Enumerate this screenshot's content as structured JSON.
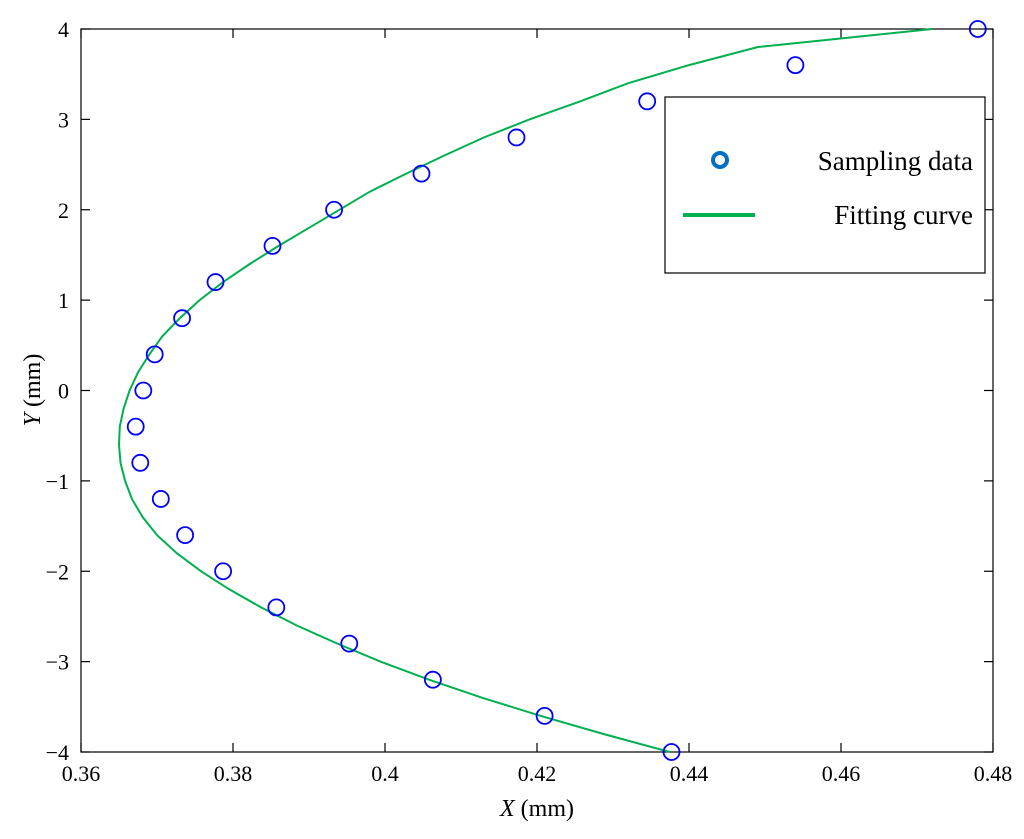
{
  "chart_data": {
    "type": "scatter",
    "xlabel_var": "X",
    "xlabel_unit": " (mm)",
    "ylabel_var": "Y",
    "ylabel_unit": " (mm)",
    "xlim": [
      0.36,
      0.48
    ],
    "ylim": [
      -4,
      4
    ],
    "x_ticks": [
      0.36,
      0.38,
      0.4,
      0.42,
      0.44,
      0.46,
      0.48
    ],
    "x_tick_labels": [
      "0.36",
      "0.38",
      "0.4",
      "0.42",
      "0.44",
      "0.46",
      "0.48"
    ],
    "y_ticks": [
      -4,
      -3,
      -2,
      -1,
      0,
      1,
      2,
      3,
      4
    ],
    "y_tick_labels": [
      "−4",
      "−3",
      "−2",
      "−1",
      "0",
      "1",
      "2",
      "3",
      "4"
    ],
    "grid": false,
    "legend": "top-right",
    "series": [
      {
        "name": "Sampling data",
        "kind": "scatter",
        "marker": "circle",
        "color": "#0000ff",
        "points": [
          [
            0.4377,
            -4.0
          ],
          [
            0.421,
            -3.6
          ],
          [
            0.4063,
            -3.2
          ],
          [
            0.3953,
            -2.8
          ],
          [
            0.3857,
            -2.4
          ],
          [
            0.3787,
            -2.0
          ],
          [
            0.3737,
            -1.6
          ],
          [
            0.3705,
            -1.2
          ],
          [
            0.3678,
            -0.8
          ],
          [
            0.3672,
            -0.4
          ],
          [
            0.3682,
            0.0
          ],
          [
            0.3697,
            0.4
          ],
          [
            0.3733,
            0.8
          ],
          [
            0.3777,
            1.2
          ],
          [
            0.3852,
            1.6
          ],
          [
            0.3933,
            2.0
          ],
          [
            0.4048,
            2.4
          ],
          [
            0.4173,
            2.8
          ],
          [
            0.4345,
            3.2
          ],
          [
            0.454,
            3.6
          ],
          [
            0.478,
            4.0
          ]
        ]
      },
      {
        "name": "Fitting curve",
        "kind": "line",
        "color": "#00b050",
        "points": [
          [
            0.4375,
            -4.0
          ],
          [
            0.4287,
            -3.8
          ],
          [
            0.4205,
            -3.6
          ],
          [
            0.4128,
            -3.4
          ],
          [
            0.4058,
            -3.2
          ],
          [
            0.3994,
            -3.0
          ],
          [
            0.3937,
            -2.8
          ],
          [
            0.3884,
            -2.6
          ],
          [
            0.3837,
            -2.4
          ],
          [
            0.3795,
            -2.2
          ],
          [
            0.3758,
            -2.0
          ],
          [
            0.3726,
            -1.8
          ],
          [
            0.37,
            -1.6
          ],
          [
            0.3681,
            -1.4
          ],
          [
            0.3667,
            -1.2
          ],
          [
            0.3658,
            -1.0
          ],
          [
            0.3652,
            -0.8
          ],
          [
            0.365,
            -0.6
          ],
          [
            0.3651,
            -0.4
          ],
          [
            0.3656,
            -0.2
          ],
          [
            0.3664,
            0.0
          ],
          [
            0.3675,
            0.2
          ],
          [
            0.369,
            0.4
          ],
          [
            0.3707,
            0.6
          ],
          [
            0.373,
            0.8
          ],
          [
            0.3756,
            1.0
          ],
          [
            0.3787,
            1.2
          ],
          [
            0.3822,
            1.4
          ],
          [
            0.386,
            1.6
          ],
          [
            0.39,
            1.8
          ],
          [
            0.394,
            2.0
          ],
          [
            0.398,
            2.2
          ],
          [
            0.4028,
            2.4
          ],
          [
            0.4078,
            2.6
          ],
          [
            0.413,
            2.8
          ],
          [
            0.419,
            3.0
          ],
          [
            0.4257,
            3.2
          ],
          [
            0.432,
            3.4
          ],
          [
            0.44,
            3.6
          ],
          [
            0.449,
            3.8
          ],
          [
            0.472,
            4.0
          ]
        ]
      }
    ]
  }
}
